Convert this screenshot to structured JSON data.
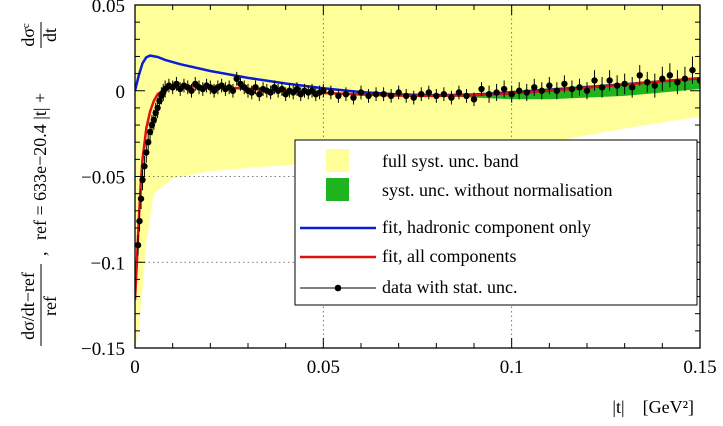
{
  "chart_data": {
    "type": "scatter",
    "xlabel": "|t|    [GeV²]",
    "ylabel_parts": {
      "left_fraction_num": "dσ/dt−ref",
      "left_fraction_den": "ref",
      "sep": ",",
      "ref_expr": "ref = 633e−20.4 |t| + ",
      "right_fraction_num": "dσᶜ",
      "right_fraction_den": "dt"
    },
    "xlim": [
      0,
      0.15
    ],
    "ylim": [
      -0.15,
      0.05
    ],
    "xticks": [
      0,
      0.05,
      0.1,
      0.15
    ],
    "xtick_labels": [
      "0",
      "0.05",
      "0.1",
      "0.15"
    ],
    "yticks": [
      -0.15,
      -0.1,
      -0.05,
      0,
      0.05
    ],
    "ytick_labels": [
      "−0.15",
      "−0.1",
      "−0.05",
      "0",
      "0.05"
    ],
    "grid": "dotted at x=0.05, 0.1 and y=-0.1, -0.05",
    "legend_position": "bottom-right",
    "legend": [
      {
        "label": "full syst. unc. band",
        "kind": "band_full"
      },
      {
        "label": "syst. unc. without normalisation",
        "kind": "band_syst"
      },
      {
        "label": "fit, hadronic component only",
        "kind": "line_hadronic"
      },
      {
        "label": "fit, all components",
        "kind": "line_all"
      },
      {
        "label": "data with stat. unc.",
        "kind": "data"
      }
    ],
    "colors": {
      "band_full": "#ffff99",
      "band_syst": "#1fb41f",
      "line_hadronic": "#0a1ed2",
      "line_all": "#e01010",
      "data": "#000000",
      "grid": "#555555"
    },
    "band_full": {
      "x": [
        0.0,
        0.001,
        0.003,
        0.005,
        0.01,
        0.02,
        0.03,
        0.05,
        0.07,
        0.09,
        0.11,
        0.13,
        0.15
      ],
      "upper": [
        0.05,
        0.05,
        0.05,
        0.05,
        0.05,
        0.05,
        0.05,
        0.05,
        0.05,
        0.05,
        0.05,
        0.05,
        0.05
      ],
      "lower": [
        -0.15,
        -0.14,
        -0.09,
        -0.06,
        -0.051,
        -0.047,
        -0.045,
        -0.042,
        -0.04,
        -0.036,
        -0.03,
        -0.022,
        -0.015
      ]
    },
    "band_syst": {
      "x": [
        0.08,
        0.09,
        0.1,
        0.11,
        0.12,
        0.13,
        0.14,
        0.15
      ],
      "upper": [
        -0.003,
        -0.002,
        0.0,
        0.0015,
        0.003,
        0.0045,
        0.006,
        0.0075
      ],
      "lower": [
        -0.003,
        -0.004,
        -0.005,
        -0.005,
        -0.004,
        -0.003,
        -0.001,
        0.001
      ]
    },
    "hadronic_fit": {
      "x": [
        0.0,
        0.001,
        0.002,
        0.003,
        0.004,
        0.006,
        0.008,
        0.012,
        0.02,
        0.03,
        0.04,
        0.05,
        0.06,
        0.07,
        0.08,
        0.09,
        0.1,
        0.11,
        0.12,
        0.13,
        0.14,
        0.15
      ],
      "y": [
        0.0,
        0.009,
        0.016,
        0.0195,
        0.0205,
        0.0197,
        0.018,
        0.0155,
        0.0115,
        0.0075,
        0.0042,
        0.0015,
        -0.0008,
        -0.0022,
        -0.0026,
        -0.0022,
        -0.001,
        0.0005,
        0.002,
        0.0038,
        0.0055,
        0.0073
      ]
    },
    "all_fit": {
      "x": [
        0.0,
        0.0005,
        0.001,
        0.0015,
        0.002,
        0.003,
        0.004,
        0.005,
        0.006,
        0.008,
        0.01,
        0.013,
        0.016,
        0.02,
        0.03,
        0.04,
        0.05,
        0.06,
        0.07,
        0.08,
        0.09,
        0.1,
        0.11,
        0.12,
        0.13,
        0.14,
        0.15
      ],
      "y": [
        -0.122,
        -0.1,
        -0.075,
        -0.055,
        -0.04,
        -0.022,
        -0.012,
        -0.006,
        -0.002,
        0.001,
        0.002,
        0.0025,
        0.0025,
        0.0023,
        0.0012,
        -0.0002,
        -0.0013,
        -0.0022,
        -0.0028,
        -0.003,
        -0.0026,
        -0.0015,
        0.0,
        0.0018,
        0.0036,
        0.0055,
        0.0074
      ]
    },
    "data_points": {
      "x": [
        0.0008,
        0.0012,
        0.0016,
        0.002,
        0.0025,
        0.003,
        0.0035,
        0.004,
        0.0045,
        0.005,
        0.0055,
        0.006,
        0.0065,
        0.007,
        0.0075,
        0.008,
        0.009,
        0.01,
        0.011,
        0.012,
        0.013,
        0.014,
        0.015,
        0.016,
        0.017,
        0.018,
        0.019,
        0.02,
        0.021,
        0.022,
        0.023,
        0.024,
        0.025,
        0.026,
        0.027,
        0.028,
        0.029,
        0.03,
        0.031,
        0.032,
        0.033,
        0.034,
        0.035,
        0.036,
        0.037,
        0.038,
        0.039,
        0.04,
        0.041,
        0.042,
        0.043,
        0.044,
        0.045,
        0.046,
        0.047,
        0.048,
        0.049,
        0.05,
        0.052,
        0.054,
        0.056,
        0.058,
        0.06,
        0.062,
        0.064,
        0.066,
        0.068,
        0.07,
        0.072,
        0.074,
        0.076,
        0.078,
        0.08,
        0.082,
        0.084,
        0.086,
        0.088,
        0.09,
        0.092,
        0.094,
        0.096,
        0.098,
        0.1,
        0.102,
        0.104,
        0.106,
        0.108,
        0.11,
        0.112,
        0.114,
        0.116,
        0.118,
        0.12,
        0.122,
        0.124,
        0.126,
        0.128,
        0.13,
        0.132,
        0.134,
        0.136,
        0.138,
        0.14,
        0.142,
        0.144,
        0.146,
        0.148,
        0.15
      ],
      "y": [
        -0.09,
        -0.076,
        -0.063,
        -0.052,
        -0.044,
        -0.036,
        -0.03,
        -0.024,
        -0.02,
        -0.017,
        -0.013,
        -0.01,
        -0.006,
        -0.003,
        -0.001,
        0.001,
        0.003,
        0.002,
        0.004,
        0.001,
        0.003,
        0.002,
        0.0,
        0.004,
        0.002,
        0.001,
        0.003,
        0.002,
        0.0,
        0.002,
        0.003,
        0.001,
        0.002,
        0.0,
        0.007,
        0.004,
        0.002,
        0.0,
        -0.001,
        0.002,
        -0.002,
        0.001,
        0.0,
        -0.001,
        0.002,
        0.0,
        0.001,
        -0.002,
        0.0,
        -0.001,
        0.001,
        -0.002,
        0.0,
        -0.001,
        0.0,
        -0.002,
        -0.001,
        0.0,
        -0.001,
        -0.003,
        -0.002,
        -0.004,
        -0.001,
        -0.003,
        -0.002,
        -0.002,
        -0.003,
        -0.001,
        -0.003,
        -0.004,
        -0.002,
        -0.001,
        -0.003,
        -0.002,
        -0.004,
        -0.001,
        -0.003,
        -0.005,
        0.001,
        -0.002,
        -0.001,
        0.001,
        -0.002,
        0.0,
        -0.001,
        0.002,
        0.0,
        0.003,
        0.0,
        0.004,
        0.001,
        0.002,
        0.0,
        0.006,
        0.002,
        0.006,
        0.003,
        0.004,
        0.002,
        0.009,
        0.005,
        0.003,
        0.007,
        0.009,
        0.005,
        0.007,
        0.012,
        0.006
      ],
      "err": [
        0.006,
        0.006,
        0.006,
        0.006,
        0.006,
        0.006,
        0.006,
        0.006,
        0.006,
        0.006,
        0.006,
        0.006,
        0.005,
        0.005,
        0.005,
        0.005,
        0.004,
        0.004,
        0.004,
        0.004,
        0.004,
        0.004,
        0.004,
        0.004,
        0.004,
        0.004,
        0.004,
        0.004,
        0.004,
        0.004,
        0.004,
        0.004,
        0.004,
        0.004,
        0.004,
        0.004,
        0.004,
        0.004,
        0.004,
        0.004,
        0.004,
        0.004,
        0.004,
        0.004,
        0.004,
        0.004,
        0.004,
        0.004,
        0.004,
        0.004,
        0.004,
        0.004,
        0.004,
        0.004,
        0.004,
        0.004,
        0.004,
        0.004,
        0.004,
        0.004,
        0.004,
        0.004,
        0.004,
        0.004,
        0.004,
        0.004,
        0.004,
        0.004,
        0.004,
        0.004,
        0.004,
        0.004,
        0.004,
        0.004,
        0.004,
        0.004,
        0.004,
        0.004,
        0.004,
        0.005,
        0.005,
        0.005,
        0.005,
        0.005,
        0.005,
        0.005,
        0.005,
        0.005,
        0.005,
        0.005,
        0.005,
        0.005,
        0.005,
        0.006,
        0.006,
        0.006,
        0.006,
        0.006,
        0.006,
        0.006,
        0.006,
        0.007,
        0.007,
        0.007,
        0.007,
        0.007,
        0.008,
        0.008
      ]
    }
  }
}
